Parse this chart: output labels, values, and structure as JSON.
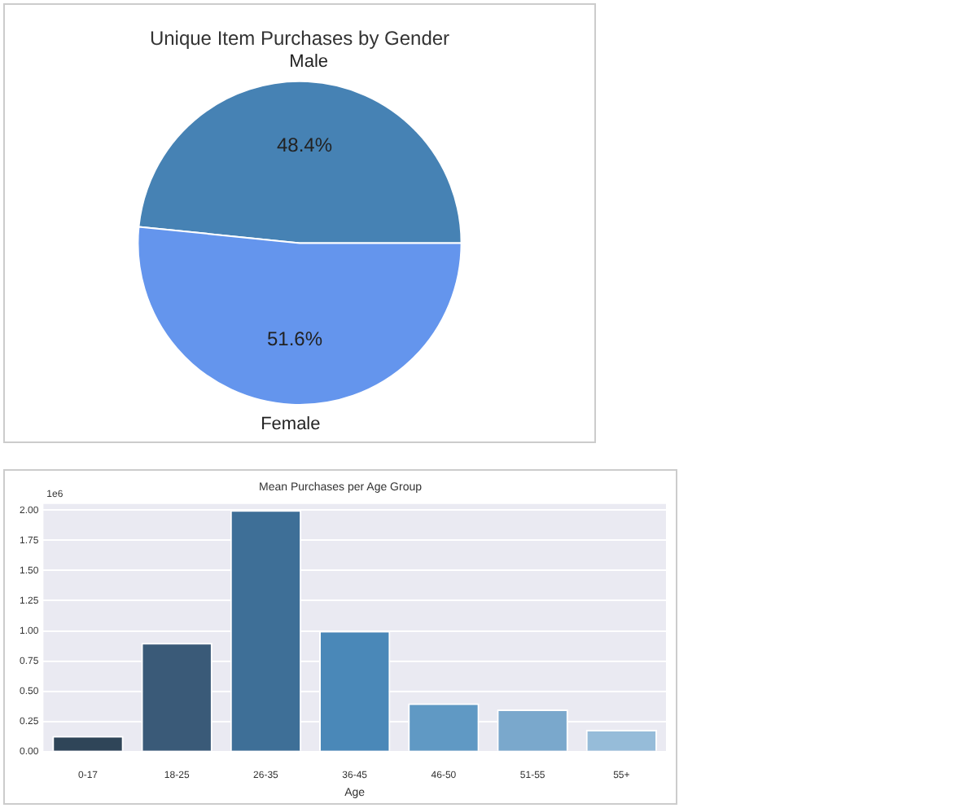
{
  "chart_data": [
    {
      "type": "pie",
      "title": "Unique Item Purchases by Gender",
      "categories": [
        "Male",
        "Female"
      ],
      "values": [
        48.4,
        51.6
      ],
      "colors": [
        "#4682b4",
        "#6495ed"
      ],
      "value_labels": [
        "48.4%",
        "51.6%"
      ],
      "legend": false
    },
    {
      "type": "bar",
      "title": "Mean Purchases per Age Group",
      "xlabel": "Age",
      "categories": [
        "0-17",
        "18-25",
        "26-35",
        "36-45",
        "46-50",
        "51-55",
        "55+"
      ],
      "values": [
        0.13,
        0.9,
        2.0,
        1.0,
        0.4,
        0.35,
        0.18
      ],
      "colors": [
        "#2f4558",
        "#3a5a78",
        "#3e6f97",
        "#4a88b8",
        "#6099c4",
        "#7aa8cc",
        "#96bcd9"
      ],
      "ylim": [
        0,
        2.05
      ],
      "yticks": [
        {
          "value": 0,
          "label": "0.00"
        },
        {
          "value": 0.25,
          "label": "0.25"
        },
        {
          "value": 0.5,
          "label": "0.50"
        },
        {
          "value": 0.75,
          "label": "0.75"
        },
        {
          "value": 1,
          "label": "1.00"
        },
        {
          "value": 1.25,
          "label": "1.25"
        },
        {
          "value": 1.5,
          "label": "1.50"
        },
        {
          "value": 1.75,
          "label": "1.75"
        },
        {
          "value": 2,
          "label": "2.00"
        }
      ],
      "annotations": [
        "1e6"
      ],
      "grid": "y",
      "legend": false
    }
  ]
}
